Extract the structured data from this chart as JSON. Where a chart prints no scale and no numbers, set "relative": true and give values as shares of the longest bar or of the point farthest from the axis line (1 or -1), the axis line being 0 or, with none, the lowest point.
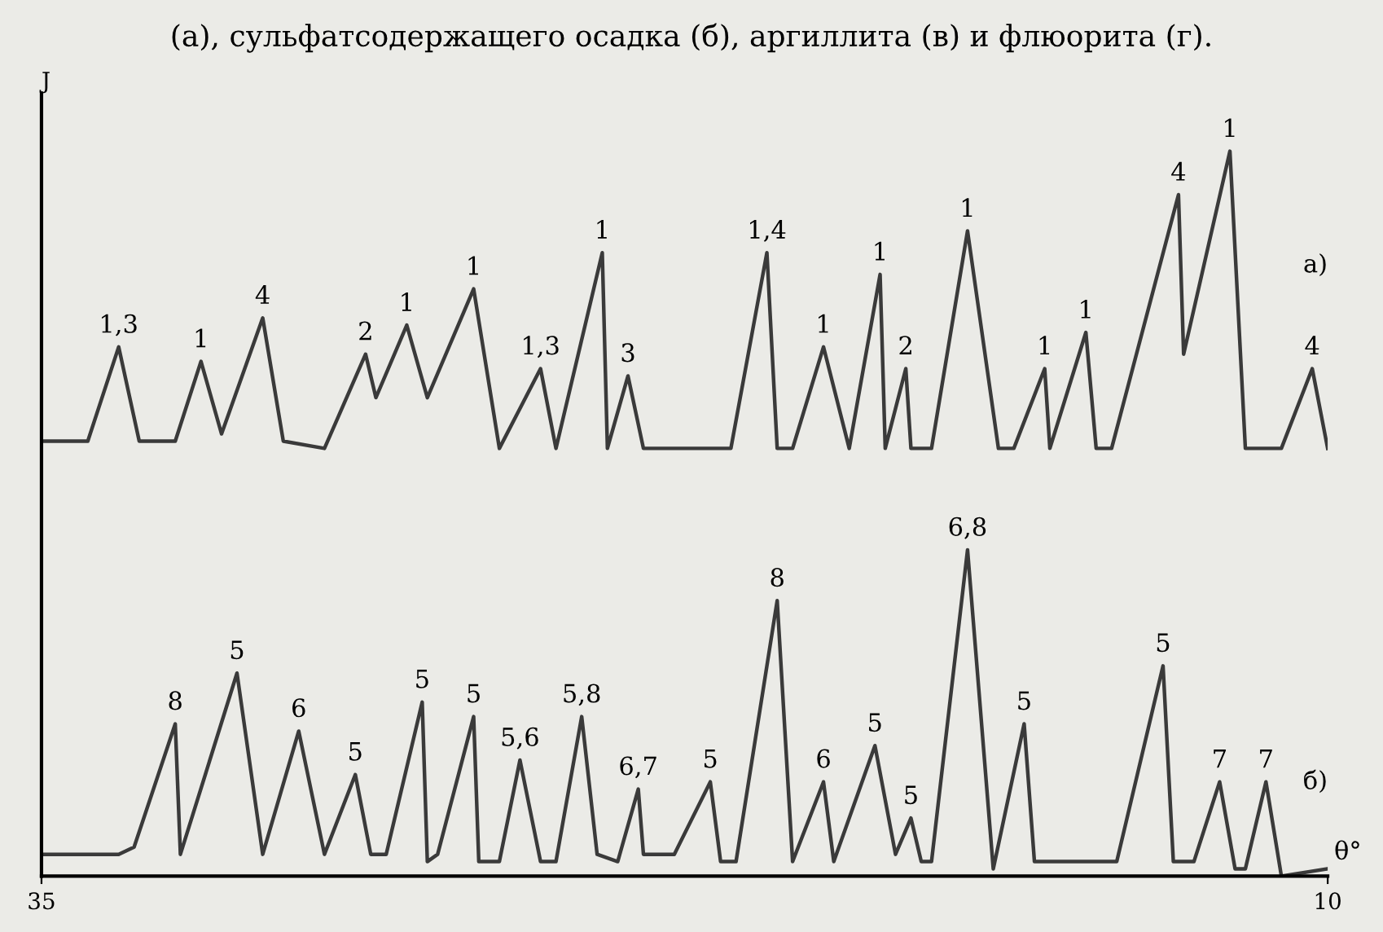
{
  "chart_data": {
    "type": "line",
    "title": "(а), сульфатсодержащего осадка (б), аргиллита (в) и флюорита (г).",
    "xlabel": "θ°",
    "ylabel": "J",
    "relative": true,
    "xlim": [
      35,
      10
    ],
    "xticks": [
      35,
      10
    ],
    "marker": "none",
    "line_style": "solid",
    "tick_labels": "x",
    "series": [
      {
        "color": "#3a3a3a",
        "x": [
          35.0,
          34.2,
          34.1,
          33.5,
          33.1,
          32.4,
          31.9,
          31.5,
          30.7,
          30.3,
          29.5,
          28.7,
          28.5,
          27.9,
          27.5,
          26.6,
          26.1,
          25.3,
          25.0,
          24.1,
          24.0,
          23.6,
          23.3,
          22.7,
          22.4,
          21.6,
          20.9,
          20.7,
          20.4,
          19.8,
          19.3,
          18.7,
          18.6,
          18.2,
          18.1,
          17.7,
          17.0,
          16.4,
          16.1,
          15.5,
          15.4,
          14.7,
          14.5,
          14.2,
          12.9,
          12.8,
          11.9,
          11.6,
          10.9,
          10.3,
          10.0
        ],
        "values": [
          0.6,
          0.6,
          0.6,
          0.73,
          0.6,
          0.6,
          0.71,
          0.61,
          0.77,
          0.6,
          0.59,
          0.72,
          0.66,
          0.76,
          0.66,
          0.81,
          0.59,
          0.7,
          0.59,
          0.86,
          0.59,
          0.69,
          0.59,
          0.59,
          0.59,
          0.59,
          0.86,
          0.59,
          0.59,
          0.73,
          0.59,
          0.83,
          0.59,
          0.7,
          0.59,
          0.59,
          0.89,
          0.59,
          0.59,
          0.7,
          0.59,
          0.75,
          0.59,
          0.59,
          0.94,
          0.72,
          1.0,
          0.59,
          0.59,
          0.7,
          0.59
        ]
      },
      {
        "color": "#3a3a3a",
        "x": [
          35.0,
          34.3,
          33.5,
          33.2,
          32.4,
          32.3,
          31.2,
          30.7,
          30.0,
          29.5,
          28.9,
          28.6,
          28.3,
          27.6,
          27.5,
          27.3,
          26.6,
          26.5,
          26.1,
          25.7,
          25.3,
          25.0,
          24.5,
          24.2,
          23.8,
          23.4,
          23.3,
          22.7,
          22.0,
          21.8,
          21.5,
          20.7,
          20.4,
          19.8,
          19.6,
          18.8,
          18.4,
          18.1,
          17.9,
          17.7,
          17.0,
          16.5,
          15.9,
          15.7,
          14.1,
          13.2,
          13.0,
          12.6,
          12.1,
          11.8,
          11.6,
          11.2,
          10.9,
          10.0
        ],
        "values": [
          0.03,
          0.03,
          0.03,
          0.04,
          0.21,
          0.03,
          0.28,
          0.03,
          0.2,
          0.03,
          0.14,
          0.03,
          0.03,
          0.24,
          0.02,
          0.03,
          0.22,
          0.02,
          0.02,
          0.16,
          0.02,
          0.02,
          0.22,
          0.03,
          0.02,
          0.12,
          0.03,
          0.03,
          0.13,
          0.02,
          0.02,
          0.38,
          0.02,
          0.13,
          0.02,
          0.18,
          0.03,
          0.08,
          0.02,
          0.02,
          0.45,
          0.01,
          0.21,
          0.02,
          0.02,
          0.29,
          0.02,
          0.02,
          0.13,
          0.01,
          0.01,
          0.13,
          0.0,
          0.01
        ]
      }
    ],
    "annotations": [
      {
        "text": "1,3",
        "x": 33.5,
        "y": 0.73
      },
      {
        "text": "1",
        "x": 31.9,
        "y": 0.71
      },
      {
        "text": "4",
        "x": 30.7,
        "y": 0.77
      },
      {
        "text": "2",
        "x": 28.7,
        "y": 0.72
      },
      {
        "text": "1",
        "x": 27.9,
        "y": 0.76
      },
      {
        "text": "1",
        "x": 26.6,
        "y": 0.81
      },
      {
        "text": "1,3",
        "x": 25.3,
        "y": 0.7
      },
      {
        "text": "1",
        "x": 24.1,
        "y": 0.86
      },
      {
        "text": "3",
        "x": 23.6,
        "y": 0.69
      },
      {
        "text": "1,4",
        "x": 20.9,
        "y": 0.86
      },
      {
        "text": "1",
        "x": 19.8,
        "y": 0.73
      },
      {
        "text": "1",
        "x": 18.7,
        "y": 0.83
      },
      {
        "text": "2",
        "x": 18.2,
        "y": 0.7
      },
      {
        "text": "1",
        "x": 17.0,
        "y": 0.89
      },
      {
        "text": "1",
        "x": 15.5,
        "y": 0.7
      },
      {
        "text": "1",
        "x": 14.7,
        "y": 0.75
      },
      {
        "text": "4",
        "x": 12.9,
        "y": 0.94
      },
      {
        "text": "1",
        "x": 11.9,
        "y": 1.0
      },
      {
        "text": "4",
        "x": 10.3,
        "y": 0.7
      },
      {
        "text": "8",
        "x": 32.4,
        "y": 0.21
      },
      {
        "text": "5",
        "x": 31.2,
        "y": 0.28
      },
      {
        "text": "6",
        "x": 30.0,
        "y": 0.2
      },
      {
        "text": "5",
        "x": 28.9,
        "y": 0.14
      },
      {
        "text": "5",
        "x": 27.6,
        "y": 0.24
      },
      {
        "text": "5",
        "x": 26.6,
        "y": 0.22
      },
      {
        "text": "5,6",
        "x": 25.7,
        "y": 0.16
      },
      {
        "text": "5,8",
        "x": 24.5,
        "y": 0.22
      },
      {
        "text": "6,7",
        "x": 23.4,
        "y": 0.12
      },
      {
        "text": "5",
        "x": 22.0,
        "y": 0.13
      },
      {
        "text": "8",
        "x": 20.7,
        "y": 0.38
      },
      {
        "text": "6",
        "x": 19.8,
        "y": 0.13
      },
      {
        "text": "5",
        "x": 18.8,
        "y": 0.18
      },
      {
        "text": "5",
        "x": 18.1,
        "y": 0.08
      },
      {
        "text": "6,8",
        "x": 17.0,
        "y": 0.45
      },
      {
        "text": "5",
        "x": 15.9,
        "y": 0.21
      },
      {
        "text": "5",
        "x": 13.2,
        "y": 0.29
      },
      {
        "text": "7",
        "x": 12.1,
        "y": 0.13
      },
      {
        "text": "7",
        "x": 11.2,
        "y": 0.13
      },
      "а)",
      "б)"
    ]
  }
}
